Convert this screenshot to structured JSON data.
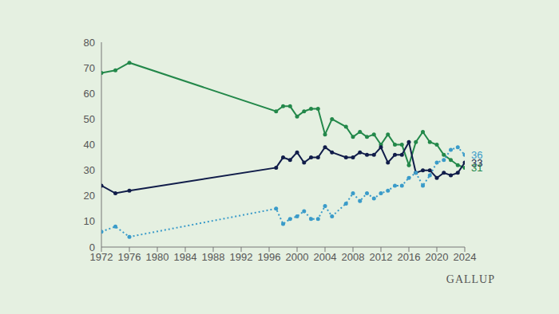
{
  "chart_data": {
    "type": "line",
    "source": "GALLUP",
    "x": [
      1972,
      1974,
      1976,
      1997,
      1998,
      1999,
      2000,
      2001,
      2002,
      2003,
      2004,
      2005,
      2007,
      2008,
      2009,
      2010,
      2011,
      2012,
      2013,
      2014,
      2015,
      2016,
      2017,
      2018,
      2019,
      2020,
      2021,
      2022,
      2023,
      2024
    ],
    "series": [
      {
        "color": "#23884a",
        "line_style": "solid",
        "marker": "circle",
        "values": [
          68,
          69,
          72,
          53,
          55,
          55,
          51,
          53,
          54,
          54,
          44,
          50,
          47,
          43,
          45,
          43,
          44,
          40,
          44,
          40,
          40,
          32,
          41,
          45,
          41,
          40,
          36,
          34,
          32,
          31
        ]
      },
      {
        "color": "#111d4a",
        "line_style": "solid",
        "marker": "circle",
        "values": [
          24,
          21,
          22,
          31,
          35,
          34,
          37,
          33,
          35,
          35,
          39,
          37,
          35,
          35,
          37,
          36,
          36,
          39,
          33,
          36,
          36,
          41,
          29,
          30,
          30,
          27,
          29,
          28,
          29,
          33
        ]
      },
      {
        "color": "#3a9bc9",
        "line_style": "dotted",
        "marker": "circle",
        "values": [
          6,
          8,
          4,
          15,
          9,
          11,
          12,
          14,
          11,
          11,
          16,
          12,
          17,
          21,
          18,
          21,
          19,
          21,
          22,
          24,
          24,
          27,
          29,
          24,
          28,
          33,
          34,
          38,
          39,
          36
        ]
      }
    ],
    "annotations": [
      {
        "x": 2024,
        "y": 36,
        "text": "36",
        "color": "#3a9bc9"
      },
      {
        "x": 2024,
        "y": 33,
        "text": "33",
        "color": "#111d4a"
      },
      {
        "x": 2024,
        "y": 31,
        "text": "31",
        "color": "#23884a"
      }
    ],
    "xlim": [
      1972,
      2024
    ],
    "xticks": [
      1972,
      1976,
      1980,
      1984,
      1988,
      1992,
      1996,
      2000,
      2004,
      2008,
      2012,
      2016,
      2020,
      2024
    ],
    "ylim": [
      0,
      80
    ],
    "yticks": [
      0,
      10,
      20,
      30,
      40,
      50,
      60,
      70,
      80
    ],
    "grid": false
  }
}
